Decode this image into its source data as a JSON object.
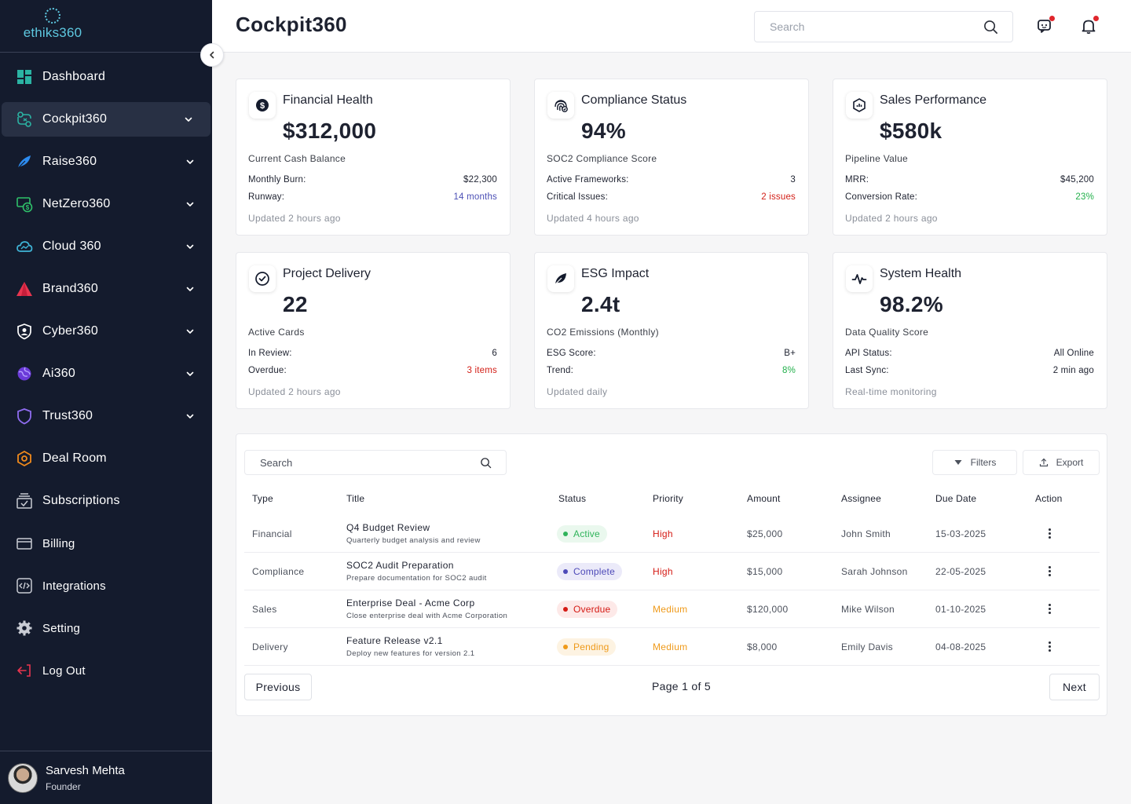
{
  "brand": {
    "name": "ethiks360"
  },
  "sidebar": {
    "items": [
      {
        "label": "Dashboard",
        "icon": "dashboard-icon",
        "chevron": false,
        "active": false
      },
      {
        "label": "Cockpit360",
        "icon": "cockpit-icon",
        "chevron": true,
        "active": true
      },
      {
        "label": "Raise360",
        "icon": "feather-icon",
        "chevron": true,
        "active": false
      },
      {
        "label": "NetZero360",
        "icon": "dollar-screen-icon",
        "chevron": true,
        "active": false
      },
      {
        "label": "Cloud 360",
        "icon": "cloud-icon",
        "chevron": true,
        "active": false
      },
      {
        "label": "Brand360",
        "icon": "brand-triangle-icon",
        "chevron": true,
        "active": false
      },
      {
        "label": "Cyber360",
        "icon": "shield-user-icon",
        "chevron": true,
        "active": false
      },
      {
        "label": "Ai360",
        "icon": "ai-globe-icon",
        "chevron": true,
        "active": false
      },
      {
        "label": "Trust360",
        "icon": "shield-icon",
        "chevron": true,
        "active": false
      },
      {
        "label": "Deal Room",
        "icon": "hexagon-icon",
        "chevron": false,
        "active": false
      },
      {
        "label": "Subscriptions",
        "icon": "subscriptions-icon",
        "chevron": false,
        "active": false
      },
      {
        "label": "Billing",
        "icon": "card-icon",
        "chevron": false,
        "active": false
      },
      {
        "label": "Integrations",
        "icon": "code-icon",
        "chevron": false,
        "active": false
      },
      {
        "label": "Setting",
        "icon": "gear-icon",
        "chevron": false,
        "active": false
      },
      {
        "label": "Log Out",
        "icon": "logout-icon",
        "chevron": false,
        "active": false
      }
    ],
    "profile": {
      "name": "Sarvesh Mehta",
      "role": "Founder"
    }
  },
  "header": {
    "title": "Cockpit360",
    "search_placeholder": "Search"
  },
  "cards": [
    {
      "title": "Financial Health",
      "icon": "dollar-circle-icon",
      "value": "$312,000",
      "subtitle": "Current Cash Balance",
      "rows": [
        {
          "label": "Monthly Burn:",
          "value": "$22,300",
          "tone": "default"
        },
        {
          "label": "Runway:",
          "value": "14 months",
          "tone": "blue"
        }
      ],
      "updated": "Updated 2 hours ago"
    },
    {
      "title": "Compliance Status",
      "icon": "fingerprint-icon",
      "value": "94%",
      "subtitle": "SOC2 Compliance Score",
      "rows": [
        {
          "label": "Active Frameworks:",
          "value": "3",
          "tone": "default"
        },
        {
          "label": "Critical Issues:",
          "value": "2 issues",
          "tone": "red"
        }
      ],
      "updated": "Updated 4 hours ago"
    },
    {
      "title": "Sales Performance",
      "icon": "chart-hexagon-icon",
      "value": "$580k",
      "subtitle": "Pipeline Value",
      "rows": [
        {
          "label": "MRR:",
          "value": "$45,200",
          "tone": "default"
        },
        {
          "label": "Conversion Rate:",
          "value": "23%",
          "tone": "green"
        }
      ],
      "updated": "Updated 2 hours ago"
    },
    {
      "title": "Project Delivery",
      "icon": "check-circle-icon",
      "value": "22",
      "subtitle": "Active Cards",
      "rows": [
        {
          "label": "In Review:",
          "value": "6",
          "tone": "default"
        },
        {
          "label": "Overdue:",
          "value": "3 items",
          "tone": "red"
        }
      ],
      "updated": "Updated 2 hours ago"
    },
    {
      "title": "ESG Impact",
      "icon": "leaf-icon",
      "value": "2.4t",
      "subtitle": "CO2 Emissions (Monthly)",
      "rows": [
        {
          "label": "ESG Score:",
          "value": "B+",
          "tone": "default"
        },
        {
          "label": "Trend:",
          "value": "8%",
          "tone": "green"
        }
      ],
      "updated": "Updated daily"
    },
    {
      "title": "System Health",
      "icon": "pulse-icon",
      "value": "98.2%",
      "subtitle": "Data Quality Score",
      "rows": [
        {
          "label": "API Status:",
          "value": "All Online",
          "tone": "default"
        },
        {
          "label": "Last Sync:",
          "value": "2 min ago",
          "tone": "default"
        }
      ],
      "updated": "Real-time monitoring"
    }
  ],
  "table": {
    "search_placeholder": "Search",
    "filters_label": "Filters",
    "export_label": "Export",
    "columns": [
      "Type",
      "Title",
      "Status",
      "Priority",
      "Amount",
      "Assignee",
      "Due Date",
      "Action"
    ],
    "rows": [
      {
        "type": "Financial",
        "title": "Q4 Budget Review",
        "desc": "Quarterly budget analysis and review",
        "status": "Active",
        "status_class": "active",
        "priority": "High",
        "amount": "$25,000",
        "assignee": "John Smith",
        "due": "15-03-2025"
      },
      {
        "type": "Compliance",
        "title": "SOC2 Audit Preparation",
        "desc": "Prepare documentation for SOC2 audit",
        "status": "Complete",
        "status_class": "complete",
        "priority": "High",
        "amount": "$15,000",
        "assignee": "Sarah Johnson",
        "due": "22-05-2025"
      },
      {
        "type": "Sales",
        "title": "Enterprise Deal - Acme Corp",
        "desc": "Close enterprise deal with Acme Corporation",
        "status": "Overdue",
        "status_class": "overdue",
        "priority": "Medium",
        "amount": "$120,000",
        "assignee": "Mike Wilson",
        "due": "01-10-2025"
      },
      {
        "type": "Delivery",
        "title": "Feature Release v2.1",
        "desc": "Deploy new features for version 2.1",
        "status": "Pending",
        "status_class": "pending",
        "priority": "Medium",
        "amount": "$8,000",
        "assignee": "Emily Davis",
        "due": "04-08-2025"
      }
    ],
    "pagination": {
      "previous": "Previous",
      "info": "Page 1 of 5",
      "next": "Next"
    }
  },
  "colors": {
    "sidebar_bg": "#141b2d",
    "accent_teal": "#5ec8e0",
    "danger": "#d51a14",
    "warning": "#ef9a1a",
    "success": "#2fb35a",
    "info": "#4d49b8"
  }
}
